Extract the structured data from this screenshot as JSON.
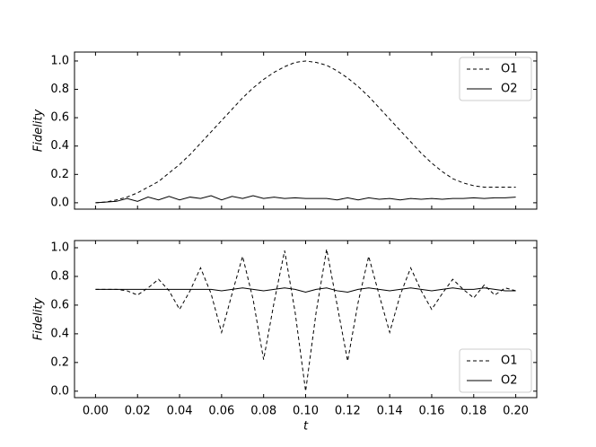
{
  "chart_data": [
    {
      "type": "line",
      "ylabel": "Fidelity",
      "x": [
        0,
        0.005,
        0.01,
        0.015,
        0.02,
        0.025,
        0.03,
        0.035,
        0.04,
        0.045,
        0.05,
        0.055,
        0.06,
        0.065,
        0.07,
        0.075,
        0.08,
        0.085,
        0.09,
        0.095,
        0.1,
        0.105,
        0.11,
        0.115,
        0.12,
        0.125,
        0.13,
        0.135,
        0.14,
        0.145,
        0.15,
        0.155,
        0.16,
        0.165,
        0.17,
        0.175,
        0.18,
        0.185,
        0.19,
        0.195,
        0.2
      ],
      "series": [
        {
          "name": "O1",
          "color": "#000000",
          "linestyle": "dashed",
          "values": [
            0,
            0.005,
            0.02,
            0.04,
            0.07,
            0.11,
            0.15,
            0.21,
            0.27,
            0.34,
            0.42,
            0.5,
            0.58,
            0.66,
            0.74,
            0.81,
            0.87,
            0.92,
            0.96,
            0.99,
            1.0,
            0.99,
            0.97,
            0.93,
            0.88,
            0.82,
            0.75,
            0.67,
            0.59,
            0.51,
            0.43,
            0.35,
            0.28,
            0.22,
            0.17,
            0.14,
            0.12,
            0.11,
            0.11,
            0.11,
            0.11
          ]
        },
        {
          "name": "O2",
          "color": "#000000",
          "linestyle": "solid",
          "values": [
            0,
            0.005,
            0.01,
            0.03,
            0.01,
            0.04,
            0.02,
            0.045,
            0.02,
            0.04,
            0.03,
            0.05,
            0.02,
            0.045,
            0.03,
            0.05,
            0.03,
            0.04,
            0.03,
            0.035,
            0.03,
            0.03,
            0.03,
            0.02,
            0.035,
            0.02,
            0.035,
            0.025,
            0.03,
            0.02,
            0.03,
            0.025,
            0.03,
            0.025,
            0.03,
            0.03,
            0.035,
            0.03,
            0.035,
            0.035,
            0.04
          ]
        }
      ],
      "xlim": [
        -0.01,
        0.21
      ],
      "xticks": [
        0,
        0.02,
        0.04,
        0.06,
        0.08,
        0.1,
        0.12,
        0.14,
        0.16,
        0.18,
        0.2
      ],
      "show_xticklabels": false,
      "ylim": [
        -0.045,
        1.063
      ],
      "yticks": [
        {
          "value": 0,
          "label": "0.0"
        },
        {
          "value": 0.2,
          "label": "0.2"
        },
        {
          "value": 0.4,
          "label": "0.4"
        },
        {
          "value": 0.6,
          "label": "0.6"
        },
        {
          "value": 0.8,
          "label": "0.8"
        },
        {
          "value": 1,
          "label": "1.0"
        }
      ],
      "legend": "upper right"
    },
    {
      "type": "line",
      "ylabel": "Fidelity",
      "xlabel": "t",
      "x": [
        0,
        0.005,
        0.01,
        0.015,
        0.02,
        0.025,
        0.03,
        0.035,
        0.04,
        0.045,
        0.05,
        0.055,
        0.06,
        0.065,
        0.07,
        0.075,
        0.08,
        0.085,
        0.09,
        0.095,
        0.1,
        0.105,
        0.11,
        0.115,
        0.12,
        0.125,
        0.13,
        0.135,
        0.14,
        0.145,
        0.15,
        0.155,
        0.16,
        0.165,
        0.17,
        0.175,
        0.18,
        0.185,
        0.19,
        0.195,
        0.2
      ],
      "series": [
        {
          "name": "O1",
          "color": "#000000",
          "linestyle": "dashed",
          "values": [
            0.71,
            0.71,
            0.71,
            0.7,
            0.67,
            0.72,
            0.78,
            0.7,
            0.57,
            0.7,
            0.86,
            0.68,
            0.41,
            0.68,
            0.94,
            0.64,
            0.22,
            0.62,
            0.98,
            0.55,
            0.0,
            0.55,
            0.99,
            0.6,
            0.21,
            0.62,
            0.94,
            0.67,
            0.41,
            0.67,
            0.86,
            0.7,
            0.57,
            0.68,
            0.78,
            0.71,
            0.65,
            0.74,
            0.67,
            0.72,
            0.7
          ]
        },
        {
          "name": "O2",
          "color": "#000000",
          "linestyle": "solid",
          "values": [
            0.71,
            0.71,
            0.71,
            0.71,
            0.71,
            0.71,
            0.71,
            0.71,
            0.71,
            0.71,
            0.71,
            0.71,
            0.7,
            0.71,
            0.72,
            0.71,
            0.7,
            0.71,
            0.72,
            0.71,
            0.69,
            0.71,
            0.72,
            0.7,
            0.69,
            0.71,
            0.72,
            0.71,
            0.7,
            0.71,
            0.72,
            0.71,
            0.7,
            0.71,
            0.72,
            0.71,
            0.71,
            0.72,
            0.71,
            0.7,
            0.7
          ]
        }
      ],
      "xlim": [
        -0.01,
        0.21
      ],
      "xticks": [
        {
          "value": 0,
          "label": "0.00"
        },
        {
          "value": 0.02,
          "label": "0.02"
        },
        {
          "value": 0.04,
          "label": "0.04"
        },
        {
          "value": 0.06,
          "label": "0.06"
        },
        {
          "value": 0.08,
          "label": "0.08"
        },
        {
          "value": 0.1,
          "label": "0.10"
        },
        {
          "value": 0.12,
          "label": "0.12"
        },
        {
          "value": 0.14,
          "label": "0.14"
        },
        {
          "value": 0.16,
          "label": "0.16"
        },
        {
          "value": 0.18,
          "label": "0.18"
        },
        {
          "value": 0.2,
          "label": "0.20"
        }
      ],
      "show_xticklabels": true,
      "ylim": [
        -0.045,
        1.05
      ],
      "yticks": [
        {
          "value": 0,
          "label": "0.0"
        },
        {
          "value": 0.2,
          "label": "0.2"
        },
        {
          "value": 0.4,
          "label": "0.4"
        },
        {
          "value": 0.6,
          "label": "0.6"
        },
        {
          "value": 0.8,
          "label": "0.8"
        },
        {
          "value": 1,
          "label": "1.0"
        }
      ],
      "legend": "lower right"
    }
  ]
}
